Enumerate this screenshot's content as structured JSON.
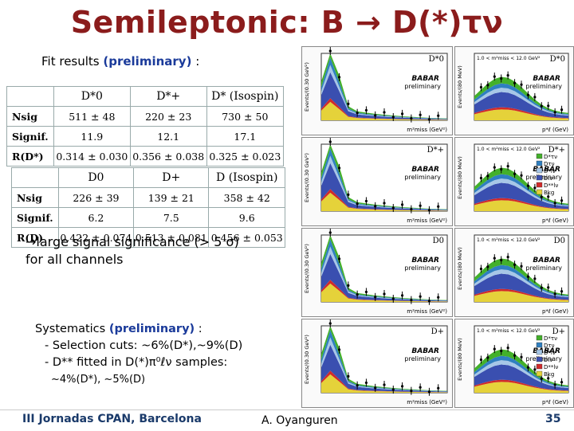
{
  "slide": {
    "title": "Semileptonic: B → D(*)τν",
    "fit_label_prefix": "Fit results ",
    "fit_label_prelim": "(preliminary)",
    "fit_label_suffix": " :",
    "note_line1": "→large signal significance (> 5 σ)",
    "note_line2": "for all channels",
    "sys_prefix": "Systematics ",
    "sys_prelim": "(preliminary)",
    "sys_suffix": " :",
    "sys_item1": "- Selection cuts:  ~6%(D*),~9%(D)",
    "sys_item2": "- D** fitted in D(*)π⁰ℓν samples:",
    "sys_item2b": "~4%(D*), ~5%(D)",
    "footer_left": "III Jornadas CPAN, Barcelona",
    "footer_mid": "A. Oyanguren",
    "footer_right": "35"
  },
  "table1": {
    "headers": [
      "D*0",
      "D*+",
      "D* (Isospin)"
    ],
    "rows": [
      {
        "label": "Nsig",
        "values": [
          "511 ± 48",
          "220 ± 23",
          "730 ± 50"
        ]
      },
      {
        "label": "Signif.",
        "values": [
          "11.9",
          "12.1",
          "17.1"
        ]
      },
      {
        "label": "R(D*)",
        "values": [
          "0.314 ± 0.030",
          "0.356 ± 0.038",
          "0.325 ± 0.023"
        ]
      }
    ]
  },
  "table2": {
    "headers": [
      "D0",
      "D+",
      "D (Isospin)"
    ],
    "rows": [
      {
        "label": "Nsig",
        "values": [
          "226 ± 39",
          "139 ± 21",
          "358 ± 42"
        ]
      },
      {
        "label": "Signif.",
        "values": [
          "6.2",
          "7.5",
          "9.6"
        ]
      },
      {
        "label": "R(D)",
        "values": [
          "0.422 ± 0.074",
          "0.513 ± 0.081",
          "0.456 ± 0.053"
        ]
      }
    ]
  },
  "plots": {
    "babar": "BABAR",
    "preliminary": "preliminary",
    "xaxis_left": "m²miss (GeV²)",
    "xaxis_right": "p*ℓ (GeV)",
    "ylabel_left": "Events/(0.30 GeV²)",
    "ylabel_right": "Events/(80 MeV)",
    "cut_label": "1.0 < m²miss < 12.0 GeV²",
    "channels": [
      "D*0",
      "D*+",
      "D0",
      "D+"
    ],
    "legend": [
      "D*τν",
      "Dτν",
      "D*lν",
      "Dlν",
      "D**lν",
      "Bkg"
    ],
    "legend_colors": [
      "#43b02a",
      "#2f7fc0",
      "#a7c7e7",
      "#3a4fb0",
      "#d12a2a",
      "#e5d23a"
    ]
  }
}
